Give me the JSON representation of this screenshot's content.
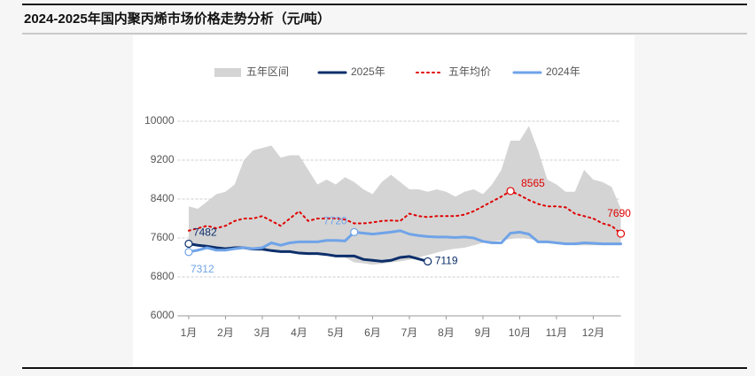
{
  "chart_data": {
    "type": "line",
    "title": "2024-2025年国内聚丙烯市场价格走势分析（元/吨）",
    "x": [
      1,
      1.25,
      1.5,
      1.75,
      2,
      2.25,
      2.5,
      2.75,
      3,
      3.25,
      3.5,
      3.75,
      4,
      4.25,
      4.5,
      4.75,
      5,
      5.25,
      5.5,
      5.75,
      6,
      6.25,
      6.5,
      6.75,
      7,
      7.25,
      7.5,
      7.75,
      8,
      8.25,
      8.5,
      8.75,
      9,
      9.25,
      9.5,
      9.75,
      10,
      10.25,
      10.5,
      10.75,
      11,
      11.25,
      11.5,
      11.75,
      12,
      12.25,
      12.5,
      12.75
    ],
    "xlim": [
      0.7,
      12.75
    ],
    "xticks": [
      {
        "value": 1,
        "label": "1月"
      },
      {
        "value": 2,
        "label": "2月"
      },
      {
        "value": 3,
        "label": "3月"
      },
      {
        "value": 4,
        "label": "4月"
      },
      {
        "value": 5,
        "label": "5月"
      },
      {
        "value": 6,
        "label": "6月"
      },
      {
        "value": 7,
        "label": "7月"
      },
      {
        "value": 8,
        "label": "8月"
      },
      {
        "value": 9,
        "label": "9月"
      },
      {
        "value": 10,
        "label": "10月"
      },
      {
        "value": 11,
        "label": "11月"
      },
      {
        "value": 12,
        "label": "12月"
      }
    ],
    "ylim": [
      6000,
      10000
    ],
    "yticks": [
      6000,
      6800,
      7600,
      8400,
      9200,
      10000
    ],
    "grid": true,
    "band": {
      "name": "五年区间",
      "color": "#d4d4d4",
      "upper": [
        8250,
        8200,
        8350,
        8500,
        8550,
        8700,
        9200,
        9400,
        9450,
        9500,
        9250,
        9300,
        9300,
        9000,
        8700,
        8800,
        8700,
        8850,
        8750,
        8600,
        8500,
        8750,
        8900,
        8750,
        8600,
        8600,
        8550,
        8600,
        8550,
        8450,
        8550,
        8600,
        8500,
        8700,
        9000,
        9600,
        9600,
        9900,
        9400,
        8800,
        8700,
        8550,
        8550,
        9000,
        8800,
        8750,
        8650,
        8200
      ],
      "lower": [
        7450,
        7430,
        7420,
        7400,
        7400,
        7380,
        7370,
        7350,
        7340,
        7320,
        7310,
        7300,
        7300,
        7280,
        7260,
        7250,
        7250,
        7200,
        7100,
        7080,
        7050,
        7070,
        7100,
        7120,
        7150,
        7200,
        7250,
        7300,
        7350,
        7380,
        7400,
        7450,
        7500,
        7520,
        7550,
        7580,
        7600,
        7580,
        7550,
        7520,
        7500,
        7480,
        7450,
        7450,
        7450,
        7450,
        7450,
        7450
      ]
    },
    "series": [
      {
        "name": "2025年",
        "color": "#0d2f6b",
        "style": "solid",
        "labeled_points": [
          0,
          26
        ],
        "values": [
          7482,
          7450,
          7430,
          7400,
          7380,
          7400,
          7400,
          7370,
          7370,
          7340,
          7320,
          7320,
          7290,
          7280,
          7280,
          7260,
          7230,
          7230,
          7230,
          7160,
          7140,
          7120,
          7140,
          7200,
          7220,
          7170,
          7119,
          null,
          null,
          null,
          null,
          null,
          null,
          null,
          null,
          null,
          null,
          null,
          null,
          null,
          null,
          null,
          null,
          null,
          null,
          null,
          null,
          null
        ]
      },
      {
        "name": "五年均价",
        "color": "#e00000",
        "style": "dotted",
        "labeled_points": [
          35,
          47
        ],
        "values": [
          7750,
          7800,
          7850,
          7800,
          7850,
          7950,
          8000,
          8000,
          8050,
          7950,
          7850,
          8000,
          8150,
          7950,
          8000,
          8000,
          8000,
          7980,
          7900,
          7900,
          7920,
          7950,
          7960,
          7950,
          8100,
          8050,
          8030,
          8050,
          8050,
          8050,
          8080,
          8150,
          8250,
          8350,
          8450,
          8565,
          8480,
          8380,
          8300,
          8250,
          8250,
          8230,
          8100,
          8050,
          8000,
          7900,
          7850,
          7690
        ]
      },
      {
        "name": "2024年",
        "color": "#6fa3e8",
        "style": "solid",
        "labeled_points": [
          0,
          18
        ],
        "values": [
          7312,
          7350,
          7400,
          7350,
          7350,
          7380,
          7400,
          7380,
          7400,
          7500,
          7450,
          7500,
          7520,
          7520,
          7520,
          7550,
          7550,
          7540,
          7720,
          7700,
          7680,
          7700,
          7720,
          7750,
          7680,
          7650,
          7630,
          7620,
          7620,
          7610,
          7620,
          7600,
          7530,
          7500,
          7500,
          7700,
          7720,
          7680,
          7520,
          7520,
          7500,
          7480,
          7480,
          7500,
          7490,
          7480,
          7480,
          7480
        ]
      }
    ]
  }
}
